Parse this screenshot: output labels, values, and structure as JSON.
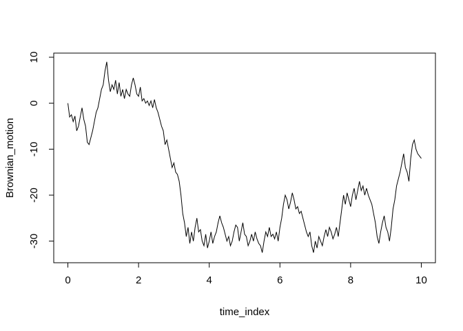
{
  "chart_data": {
    "type": "line",
    "x_label": "time_index",
    "y_label": "Brownian_motion",
    "x": [
      0,
      0.05,
      0.1,
      0.15,
      0.2,
      0.25,
      0.3,
      0.35,
      0.4,
      0.45,
      0.5,
      0.55,
      0.6,
      0.65,
      0.7,
      0.75,
      0.8,
      0.85,
      0.9,
      0.95,
      1,
      1.05,
      1.1,
      1.15,
      1.2,
      1.25,
      1.3,
      1.35,
      1.4,
      1.45,
      1.5,
      1.55,
      1.6,
      1.65,
      1.7,
      1.75,
      1.8,
      1.85,
      1.9,
      1.95,
      2,
      2.05,
      2.1,
      2.15,
      2.2,
      2.25,
      2.3,
      2.35,
      2.4,
      2.45,
      2.5,
      2.55,
      2.6,
      2.65,
      2.7,
      2.75,
      2.8,
      2.85,
      2.9,
      2.95,
      3,
      3.05,
      3.1,
      3.15,
      3.2,
      3.25,
      3.3,
      3.35,
      3.4,
      3.45,
      3.5,
      3.55,
      3.6,
      3.65,
      3.7,
      3.75,
      3.8,
      3.85,
      3.9,
      3.95,
      4,
      4.05,
      4.1,
      4.15,
      4.2,
      4.25,
      4.3,
      4.35,
      4.4,
      4.45,
      4.5,
      4.55,
      4.6,
      4.65,
      4.7,
      4.75,
      4.8,
      4.85,
      4.9,
      4.95,
      5,
      5.05,
      5.1,
      5.15,
      5.2,
      5.25,
      5.3,
      5.35,
      5.4,
      5.45,
      5.5,
      5.55,
      5.6,
      5.65,
      5.7,
      5.75,
      5.8,
      5.85,
      5.9,
      5.95,
      6,
      6.05,
      6.1,
      6.15,
      6.2,
      6.25,
      6.3,
      6.35,
      6.4,
      6.45,
      6.5,
      6.55,
      6.6,
      6.65,
      6.7,
      6.75,
      6.8,
      6.85,
      6.9,
      6.95,
      7,
      7.05,
      7.1,
      7.15,
      7.2,
      7.25,
      7.3,
      7.35,
      7.4,
      7.45,
      7.5,
      7.55,
      7.6,
      7.65,
      7.7,
      7.75,
      7.8,
      7.85,
      7.9,
      7.95,
      8,
      8.05,
      8.1,
      8.15,
      8.2,
      8.25,
      8.3,
      8.35,
      8.4,
      8.45,
      8.5,
      8.55,
      8.6,
      8.65,
      8.7,
      8.75,
      8.8,
      8.85,
      8.9,
      8.95,
      9,
      9.05,
      9.1,
      9.15,
      9.2,
      9.25,
      9.3,
      9.35,
      9.4,
      9.45,
      9.5,
      9.55,
      9.6,
      9.65,
      9.7,
      9.75,
      9.8,
      9.85,
      9.9,
      9.95,
      10
    ],
    "series": [
      {
        "color": "#000000",
        "values": [
          0,
          -3,
          -2.5,
          -4,
          -2.8,
          -6,
          -5,
          -3,
          -1,
          -3.5,
          -5,
          -8.5,
          -9,
          -7.5,
          -6,
          -4,
          -2,
          -1,
          1,
          3,
          4,
          7,
          9,
          5,
          2.5,
          4,
          3,
          5,
          2,
          4.5,
          1.5,
          3,
          1,
          3,
          2,
          1.5,
          4,
          5.5,
          4,
          2,
          1.5,
          3.5,
          0.5,
          1,
          0,
          0.5,
          -0.5,
          0.5,
          -1,
          0.8,
          -1,
          -2,
          -3.5,
          -5,
          -6,
          -9,
          -8,
          -10,
          -12,
          -14,
          -13,
          -15,
          -15.5,
          -17,
          -20,
          -24,
          -26,
          -29,
          -27,
          -30.5,
          -28,
          -30,
          -27,
          -25,
          -28,
          -27.5,
          -30,
          -31,
          -28.5,
          -31.5,
          -30,
          -28,
          -30.5,
          -29,
          -28,
          -26,
          -24.5,
          -26,
          -27,
          -28.5,
          -30,
          -29,
          -31,
          -30,
          -28,
          -26.5,
          -27,
          -30,
          -28,
          -26,
          -28.5,
          -29,
          -31,
          -30,
          -28.5,
          -30,
          -28,
          -29.5,
          -30.5,
          -31,
          -32.5,
          -30,
          -28,
          -29,
          -27,
          -29,
          -28.5,
          -29.5,
          -28,
          -30,
          -27,
          -25,
          -22,
          -20,
          -21,
          -23,
          -21.5,
          -19.5,
          -21,
          -23,
          -22.5,
          -24,
          -23.5,
          -25,
          -26.5,
          -28,
          -29,
          -28,
          -31,
          -32.5,
          -30,
          -31.5,
          -29,
          -30,
          -31,
          -29,
          -27.5,
          -29,
          -27,
          -28,
          -29.5,
          -28.5,
          -27,
          -29,
          -26,
          -23,
          -20,
          -22,
          -19.5,
          -21,
          -22.5,
          -20,
          -18.5,
          -21,
          -19,
          -17,
          -19,
          -18,
          -20,
          -18.5,
          -20,
          -21,
          -22,
          -24,
          -26,
          -29,
          -30.5,
          -28,
          -26,
          -24.5,
          -27,
          -28,
          -30,
          -27,
          -23,
          -21,
          -18,
          -16.5,
          -15,
          -13,
          -11,
          -14,
          -15,
          -17,
          -12,
          -9,
          -8,
          -10,
          -11,
          -11.5,
          -12
        ]
      }
    ],
    "xlim": [
      -0.4,
      10.4
    ],
    "ylim": [
      -34.7,
      10.9
    ],
    "xticks": [
      0,
      2,
      4,
      6,
      8,
      10
    ],
    "yticks": [
      -30,
      -20,
      -10,
      0,
      10
    ]
  }
}
